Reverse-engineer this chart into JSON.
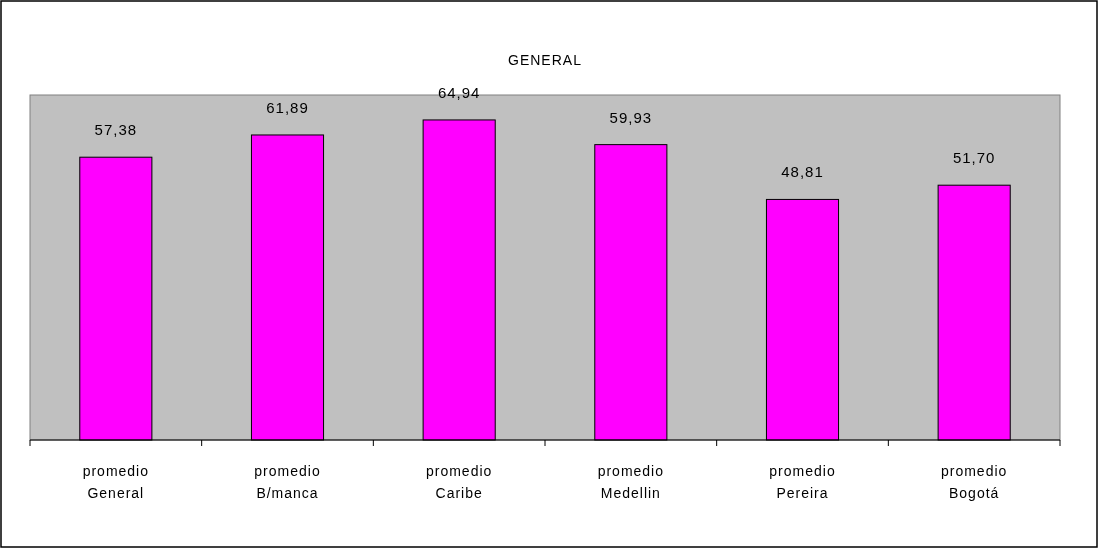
{
  "chart_data": {
    "type": "bar",
    "title": "GENERAL",
    "categories": [
      "promedio General",
      "promedio B/manca",
      "promedio Caribe",
      "promedio Medellin",
      "promedio Pereira",
      "promedio Bogotá"
    ],
    "values": [
      57.38,
      61.89,
      64.94,
      59.93,
      48.81,
      51.7
    ],
    "value_labels": [
      "57,38",
      "61,89",
      "64,94",
      "59,93",
      "48,81",
      "51,70"
    ],
    "color": "#ff00ff",
    "ylim": [
      0,
      70
    ]
  }
}
